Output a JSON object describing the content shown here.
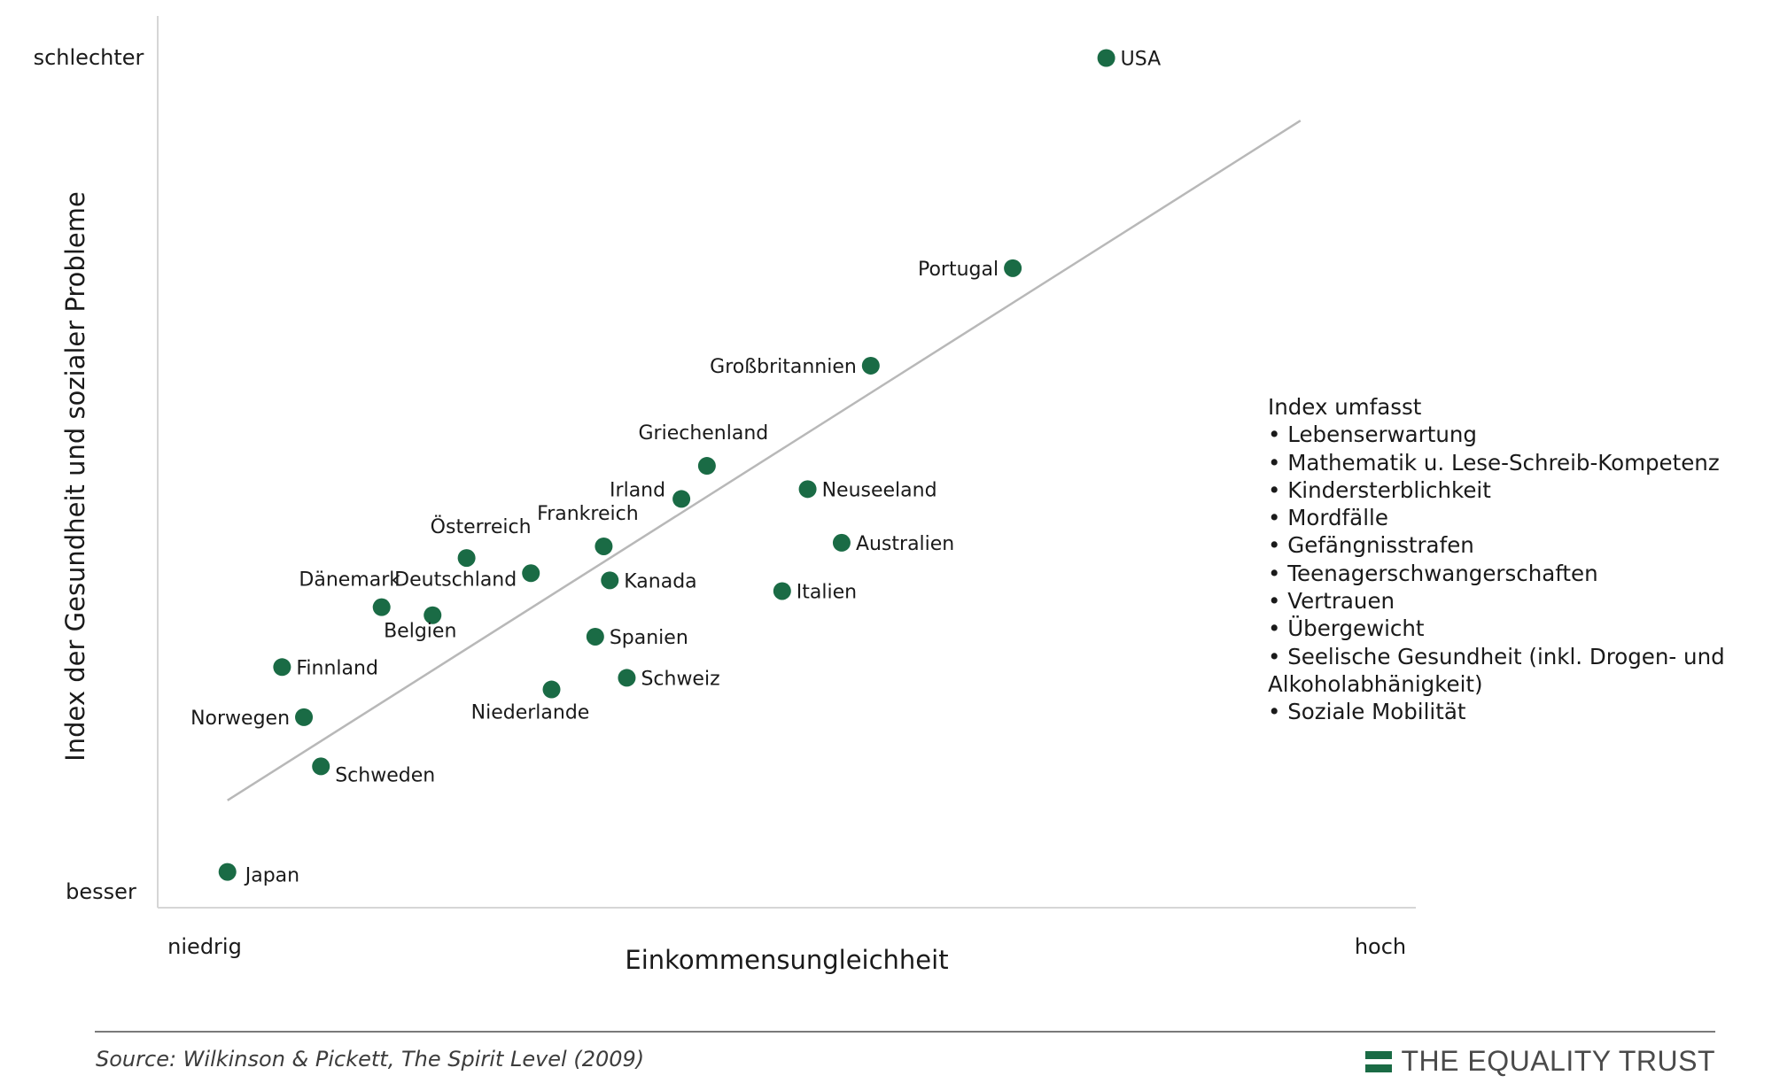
{
  "chart_data": {
    "type": "scatter",
    "title": "",
    "xlabel": "Einkommensungleichheit",
    "ylabel": "Index der Gesundheit und sozialer Probleme",
    "x_low_label": "niedrig",
    "x_high_label": "hoch",
    "y_low_label": "besser",
    "y_high_label": "schlechter",
    "xlim": [
      0,
      100
    ],
    "ylim": [
      0,
      100
    ],
    "points": [
      {
        "name": "USA",
        "x": 78.0,
        "y": 95.0
      },
      {
        "name": "Portugal",
        "x": 70.3,
        "y": 71.5
      },
      {
        "name": "Großbritannien",
        "x": 58.6,
        "y": 60.6
      },
      {
        "name": "Griechenland",
        "x": 45.1,
        "y": 49.4
      },
      {
        "name": "Irland",
        "x": 43.0,
        "y": 45.7
      },
      {
        "name": "Neuseeland",
        "x": 53.4,
        "y": 46.8
      },
      {
        "name": "Australien",
        "x": 56.2,
        "y": 40.8
      },
      {
        "name": "Frankreich",
        "x": 36.6,
        "y": 40.4
      },
      {
        "name": "Kanada",
        "x": 37.1,
        "y": 36.6
      },
      {
        "name": "Italien",
        "x": 51.3,
        "y": 35.4
      },
      {
        "name": "Österreich",
        "x": 25.3,
        "y": 39.1
      },
      {
        "name": "Deutschland",
        "x": 30.6,
        "y": 37.4
      },
      {
        "name": "Dänemark",
        "x": 18.3,
        "y": 33.6
      },
      {
        "name": "Belgien",
        "x": 22.5,
        "y": 32.7
      },
      {
        "name": "Spanien",
        "x": 35.9,
        "y": 30.3
      },
      {
        "name": "Schweiz",
        "x": 38.5,
        "y": 25.7
      },
      {
        "name": "Niederlande",
        "x": 32.3,
        "y": 24.4
      },
      {
        "name": "Finnland",
        "x": 10.1,
        "y": 26.9
      },
      {
        "name": "Norwegen",
        "x": 11.9,
        "y": 21.3
      },
      {
        "name": "Schweden",
        "x": 13.3,
        "y": 15.8
      },
      {
        "name": "Japan",
        "x": 5.6,
        "y": 4.0
      }
    ],
    "trendline": {
      "x": [
        5.6,
        94.0
      ],
      "y": [
        12.0,
        88.0
      ]
    }
  },
  "info_box": {
    "title": "Index umfasst",
    "items": [
      "• Lebenserwartung",
      "• Mathematik u. Lese-Schreib-Kompetenz",
      "• Kindersterblichkeit",
      "• Mordfälle",
      "• Gefängnisstrafen",
      "• Teenagerschwangerschaften",
      "• Vertrauen",
      "• Übergewicht",
      "• Seelische Gesundheit (inkl. Drogen- und Alkoholabhänigkeit)",
      "• Soziale Mobilität"
    ]
  },
  "footer": {
    "source": "Source: Wilkinson & Pickett, The Spirit Level (2009)",
    "brand": "THE EQUALITY TRUST"
  },
  "colors": {
    "point": "#1a6b45",
    "trendline": "#b8b8b8",
    "axis": "#d6d6d6"
  }
}
